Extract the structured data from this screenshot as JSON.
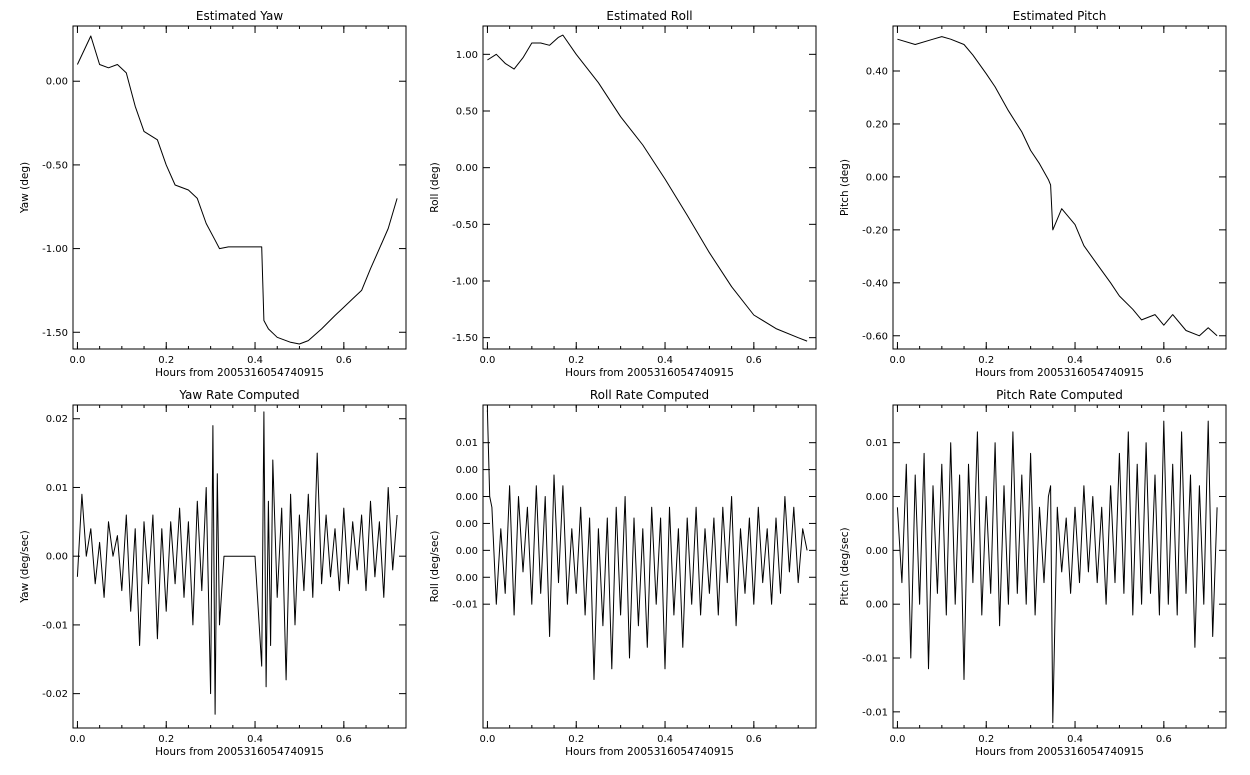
{
  "chart_data": [
    {
      "type": "line",
      "title": "Estimated Yaw",
      "xlabel": "Hours from 2005316054740915",
      "ylabel": "Yaw (deg)",
      "xlim": [
        -0.01,
        0.74
      ],
      "ylim": [
        -1.6,
        0.33
      ],
      "xticks": [
        0.0,
        0.2,
        0.4,
        0.6
      ],
      "xtick_labels": [
        "0.0",
        "0.2",
        "0.4",
        "0.6"
      ],
      "yticks": [
        0.0,
        -0.5,
        -1.0,
        -1.5
      ],
      "ytick_labels": [
        "0.00",
        "-0.50",
        "-1.00",
        "-1.50"
      ],
      "grid": false,
      "series": [
        {
          "x": [
            0.0,
            0.03,
            0.05,
            0.07,
            0.09,
            0.11,
            0.13,
            0.15,
            0.18,
            0.2,
            0.22,
            0.25,
            0.27,
            0.29,
            0.31,
            0.32,
            0.34,
            0.36,
            0.38,
            0.4,
            0.415,
            0.42,
            0.43,
            0.45,
            0.48,
            0.5,
            0.52,
            0.55,
            0.58,
            0.6,
            0.62,
            0.64,
            0.66,
            0.68,
            0.7,
            0.72
          ],
          "y": [
            0.1,
            0.27,
            0.1,
            0.08,
            0.1,
            0.05,
            -0.15,
            -0.3,
            -0.35,
            -0.5,
            -0.62,
            -0.65,
            -0.7,
            -0.85,
            -0.95,
            -1.0,
            -0.99,
            -0.99,
            -0.99,
            -0.99,
            -0.99,
            -1.43,
            -1.48,
            -1.53,
            -1.56,
            -1.57,
            -1.55,
            -1.48,
            -1.4,
            -1.35,
            -1.3,
            -1.25,
            -1.12,
            -1.0,
            -0.88,
            -0.7
          ]
        }
      ]
    },
    {
      "type": "line",
      "title": "Estimated Roll",
      "xlabel": "Hours from 2005316054740915",
      "ylabel": "Roll (deg)",
      "xlim": [
        -0.01,
        0.74
      ],
      "ylim": [
        -1.6,
        1.25
      ],
      "xticks": [
        0.0,
        0.2,
        0.4,
        0.6
      ],
      "xtick_labels": [
        "0.0",
        "0.2",
        "0.4",
        "0.6"
      ],
      "yticks": [
        1.0,
        0.5,
        0.0,
        -0.5,
        -1.0,
        -1.5
      ],
      "ytick_labels": [
        "1.00",
        "0.50",
        "0.00",
        "-0.50",
        "-1.00",
        "-1.50"
      ],
      "grid": false,
      "series": [
        {
          "x": [
            0.0,
            0.02,
            0.04,
            0.06,
            0.08,
            0.1,
            0.12,
            0.14,
            0.16,
            0.17,
            0.2,
            0.25,
            0.3,
            0.35,
            0.4,
            0.45,
            0.5,
            0.55,
            0.6,
            0.65,
            0.7,
            0.72
          ],
          "y": [
            0.95,
            1.0,
            0.92,
            0.87,
            0.97,
            1.1,
            1.1,
            1.08,
            1.15,
            1.17,
            1.0,
            0.75,
            0.45,
            0.2,
            -0.1,
            -0.42,
            -0.75,
            -1.05,
            -1.3,
            -1.42,
            -1.5,
            -1.53
          ]
        }
      ]
    },
    {
      "type": "line",
      "title": "Estimated Pitch",
      "xlabel": "Hours from 2005316054740915",
      "ylabel": "Pitch (deg)",
      "xlim": [
        -0.01,
        0.74
      ],
      "ylim": [
        -0.65,
        0.57
      ],
      "xticks": [
        0.0,
        0.2,
        0.4,
        0.6
      ],
      "xtick_labels": [
        "0.0",
        "0.2",
        "0.4",
        "0.6"
      ],
      "yticks": [
        0.4,
        0.2,
        0.0,
        -0.2,
        -0.4,
        -0.6
      ],
      "ytick_labels": [
        "0.40",
        "0.20",
        "0.00",
        "-0.20",
        "-0.40",
        "-0.60"
      ],
      "grid": false,
      "series": [
        {
          "x": [
            0.0,
            0.04,
            0.08,
            0.1,
            0.12,
            0.15,
            0.17,
            0.2,
            0.22,
            0.25,
            0.28,
            0.3,
            0.32,
            0.34,
            0.345,
            0.35,
            0.37,
            0.4,
            0.42,
            0.45,
            0.48,
            0.5,
            0.53,
            0.55,
            0.58,
            0.6,
            0.62,
            0.65,
            0.68,
            0.7,
            0.72
          ],
          "y": [
            0.52,
            0.5,
            0.52,
            0.53,
            0.52,
            0.5,
            0.46,
            0.39,
            0.34,
            0.25,
            0.17,
            0.1,
            0.05,
            -0.01,
            -0.03,
            -0.2,
            -0.12,
            -0.18,
            -0.26,
            -0.33,
            -0.4,
            -0.45,
            -0.5,
            -0.54,
            -0.52,
            -0.56,
            -0.52,
            -0.58,
            -0.6,
            -0.57,
            -0.6
          ]
        }
      ]
    },
    {
      "type": "line",
      "title": "Yaw Rate Computed",
      "xlabel": "Hours from 2005316054740915",
      "ylabel": "Yaw (deg/sec)",
      "xlim": [
        -0.01,
        0.74
      ],
      "ylim": [
        -0.025,
        0.022
      ],
      "xticks": [
        0.0,
        0.2,
        0.4,
        0.6
      ],
      "xtick_labels": [
        "0.0",
        "0.2",
        "0.4",
        "0.6"
      ],
      "yticks": [
        0.02,
        0.01,
        0.0,
        -0.01,
        -0.02
      ],
      "ytick_labels": [
        "0.02",
        "0.01",
        "0.00",
        "-0.01",
        "-0.02"
      ],
      "grid": false,
      "series": [
        {
          "x": [
            0.0,
            0.01,
            0.02,
            0.03,
            0.04,
            0.05,
            0.06,
            0.07,
            0.08,
            0.09,
            0.1,
            0.11,
            0.12,
            0.13,
            0.14,
            0.15,
            0.16,
            0.17,
            0.18,
            0.19,
            0.2,
            0.21,
            0.22,
            0.23,
            0.24,
            0.25,
            0.26,
            0.27,
            0.28,
            0.29,
            0.3,
            0.305,
            0.31,
            0.315,
            0.32,
            0.33,
            0.4,
            0.415,
            0.42,
            0.425,
            0.43,
            0.435,
            0.44,
            0.45,
            0.46,
            0.47,
            0.48,
            0.49,
            0.5,
            0.51,
            0.52,
            0.53,
            0.54,
            0.55,
            0.56,
            0.57,
            0.58,
            0.59,
            0.6,
            0.61,
            0.62,
            0.63,
            0.64,
            0.65,
            0.66,
            0.67,
            0.68,
            0.69,
            0.7,
            0.71,
            0.72
          ],
          "y": [
            -0.003,
            0.009,
            0.0,
            0.004,
            -0.004,
            0.002,
            -0.006,
            0.005,
            0.0,
            0.003,
            -0.005,
            0.006,
            -0.008,
            0.004,
            -0.013,
            0.005,
            -0.004,
            0.006,
            -0.012,
            0.004,
            -0.008,
            0.005,
            -0.004,
            0.007,
            -0.006,
            0.005,
            -0.01,
            0.008,
            -0.005,
            0.01,
            -0.02,
            0.019,
            -0.023,
            0.012,
            -0.01,
            0.0,
            0.0,
            -0.016,
            0.021,
            -0.019,
            0.008,
            -0.013,
            0.014,
            -0.006,
            0.007,
            -0.018,
            0.009,
            -0.01,
            0.006,
            -0.005,
            0.009,
            -0.006,
            0.015,
            -0.004,
            0.006,
            -0.003,
            0.004,
            -0.005,
            0.007,
            -0.004,
            0.005,
            -0.002,
            0.006,
            -0.005,
            0.008,
            -0.003,
            0.005,
            -0.006,
            0.01,
            -0.002,
            0.006
          ]
        }
      ]
    },
    {
      "type": "line",
      "title": "Roll Rate Computed",
      "xlabel": "Hours from 2005316054740915",
      "ylabel": "Roll (deg/sec)",
      "xlim": [
        -0.01,
        0.74
      ],
      "ylim": [
        -0.0165,
        0.0135
      ],
      "xticks": [
        0.0,
        0.2,
        0.4,
        0.6
      ],
      "xtick_labels": [
        "0.0",
        "0.2",
        "0.4",
        "0.6"
      ],
      "yticks": [
        0.01,
        0.0075,
        0.005,
        0.0025,
        0.0,
        -0.0025,
        -0.005
      ],
      "ytick_labels": [
        "0.01",
        "0.00",
        "0.00",
        "0.00",
        "0.00",
        "0.00",
        "-0.01"
      ],
      "grid": false,
      "series": [
        {
          "x": [
            0.0,
            0.005,
            0.01,
            0.02,
            0.03,
            0.04,
            0.05,
            0.06,
            0.07,
            0.08,
            0.09,
            0.1,
            0.11,
            0.12,
            0.13,
            0.14,
            0.15,
            0.16,
            0.17,
            0.18,
            0.19,
            0.2,
            0.21,
            0.22,
            0.23,
            0.24,
            0.25,
            0.26,
            0.27,
            0.28,
            0.29,
            0.3,
            0.31,
            0.32,
            0.33,
            0.34,
            0.35,
            0.36,
            0.37,
            0.38,
            0.39,
            0.4,
            0.41,
            0.42,
            0.43,
            0.44,
            0.45,
            0.46,
            0.47,
            0.48,
            0.49,
            0.5,
            0.51,
            0.52,
            0.53,
            0.54,
            0.55,
            0.56,
            0.57,
            0.58,
            0.59,
            0.6,
            0.61,
            0.62,
            0.63,
            0.64,
            0.65,
            0.66,
            0.67,
            0.68,
            0.69,
            0.7,
            0.71,
            0.72
          ],
          "y": [
            0.013,
            0.005,
            0.004,
            -0.005,
            0.002,
            -0.004,
            0.006,
            -0.006,
            0.005,
            -0.002,
            0.004,
            -0.005,
            0.006,
            -0.004,
            0.005,
            -0.008,
            0.007,
            -0.003,
            0.006,
            -0.005,
            0.002,
            -0.004,
            0.004,
            -0.006,
            0.003,
            -0.012,
            0.002,
            -0.007,
            0.003,
            -0.011,
            0.004,
            -0.006,
            0.005,
            -0.01,
            0.003,
            -0.007,
            0.002,
            -0.009,
            0.004,
            -0.005,
            0.003,
            -0.011,
            0.004,
            -0.006,
            0.002,
            -0.009,
            0.003,
            -0.005,
            0.004,
            -0.006,
            0.002,
            -0.004,
            0.003,
            -0.006,
            0.004,
            -0.003,
            0.005,
            -0.007,
            0.002,
            -0.004,
            0.003,
            -0.005,
            0.004,
            -0.003,
            0.002,
            -0.005,
            0.003,
            -0.004,
            0.005,
            -0.002,
            0.004,
            -0.003,
            0.002,
            0.0
          ]
        }
      ]
    },
    {
      "type": "line",
      "title": "Pitch Rate Computed",
      "xlabel": "Hours from 2005316054740915",
      "ylabel": "Pitch (deg/sec)",
      "xlim": [
        -0.01,
        0.74
      ],
      "ylim": [
        -0.0165,
        0.0135
      ],
      "xticks": [
        0.0,
        0.2,
        0.4,
        0.6
      ],
      "xtick_labels": [
        "0.0",
        "0.2",
        "0.4",
        "0.6"
      ],
      "yticks": [
        0.01,
        0.005,
        0.0,
        -0.005,
        -0.01,
        -0.015
      ],
      "ytick_labels": [
        "0.01",
        "0.00",
        "0.00",
        "0.00",
        "-0.01",
        "-0.01"
      ],
      "grid": false,
      "series": [
        {
          "x": [
            0.0,
            0.01,
            0.02,
            0.03,
            0.04,
            0.05,
            0.06,
            0.07,
            0.08,
            0.09,
            0.1,
            0.11,
            0.12,
            0.13,
            0.14,
            0.15,
            0.16,
            0.17,
            0.18,
            0.19,
            0.2,
            0.21,
            0.22,
            0.23,
            0.24,
            0.25,
            0.26,
            0.27,
            0.28,
            0.29,
            0.3,
            0.31,
            0.32,
            0.33,
            0.34,
            0.345,
            0.35,
            0.36,
            0.37,
            0.38,
            0.39,
            0.4,
            0.41,
            0.42,
            0.43,
            0.44,
            0.45,
            0.46,
            0.47,
            0.48,
            0.49,
            0.5,
            0.51,
            0.52,
            0.53,
            0.54,
            0.55,
            0.56,
            0.57,
            0.58,
            0.59,
            0.6,
            0.61,
            0.62,
            0.63,
            0.64,
            0.65,
            0.66,
            0.67,
            0.68,
            0.69,
            0.7,
            0.71,
            0.72
          ],
          "y": [
            0.004,
            -0.003,
            0.008,
            -0.01,
            0.007,
            -0.005,
            0.009,
            -0.011,
            0.006,
            -0.004,
            0.008,
            -0.006,
            0.01,
            -0.005,
            0.007,
            -0.012,
            0.008,
            -0.003,
            0.011,
            -0.006,
            0.005,
            -0.004,
            0.01,
            -0.007,
            0.006,
            -0.005,
            0.011,
            -0.004,
            0.007,
            -0.005,
            0.009,
            -0.006,
            0.004,
            -0.003,
            0.005,
            0.006,
            -0.016,
            0.004,
            -0.002,
            0.003,
            -0.004,
            0.004,
            -0.003,
            0.006,
            -0.002,
            0.005,
            -0.003,
            0.004,
            -0.005,
            0.006,
            -0.003,
            0.009,
            -0.004,
            0.011,
            -0.006,
            0.008,
            -0.005,
            0.01,
            -0.004,
            0.007,
            -0.006,
            0.012,
            -0.005,
            0.008,
            -0.006,
            0.011,
            -0.004,
            0.007,
            -0.009,
            0.006,
            -0.005,
            0.012,
            -0.008,
            0.004
          ]
        }
      ]
    }
  ]
}
